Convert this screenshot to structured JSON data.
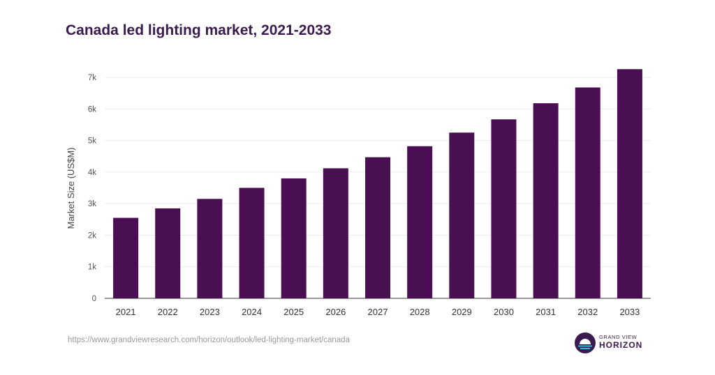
{
  "chart_data": {
    "type": "bar",
    "title": "Canada led lighting market, 2021-2033",
    "xlabel": "",
    "ylabel": "Market Size (US$M)",
    "categories": [
      "2021",
      "2022",
      "2023",
      "2024",
      "2025",
      "2026",
      "2027",
      "2028",
      "2029",
      "2030",
      "2031",
      "2032",
      "2033"
    ],
    "values": [
      2550,
      2850,
      3150,
      3500,
      3800,
      4120,
      4470,
      4820,
      5250,
      5670,
      6180,
      6680,
      7260
    ],
    "ylim": [
      0,
      7000
    ],
    "yticks": [
      0,
      1000,
      2000,
      3000,
      4000,
      5000,
      6000,
      7000
    ],
    "ytick_labels": [
      "0",
      "1k",
      "2k",
      "3k",
      "4k",
      "5k",
      "6k",
      "7k"
    ],
    "grid": true,
    "bar_color": "#4a0f52"
  },
  "footer": {
    "source": "https://www.grandviewresearch.com/horizon/outlook/led-lighting-market/canada"
  },
  "logo": {
    "line1": "GRAND VIEW",
    "line2": "HORIZON",
    "icon": "sunrise-logo-icon"
  }
}
